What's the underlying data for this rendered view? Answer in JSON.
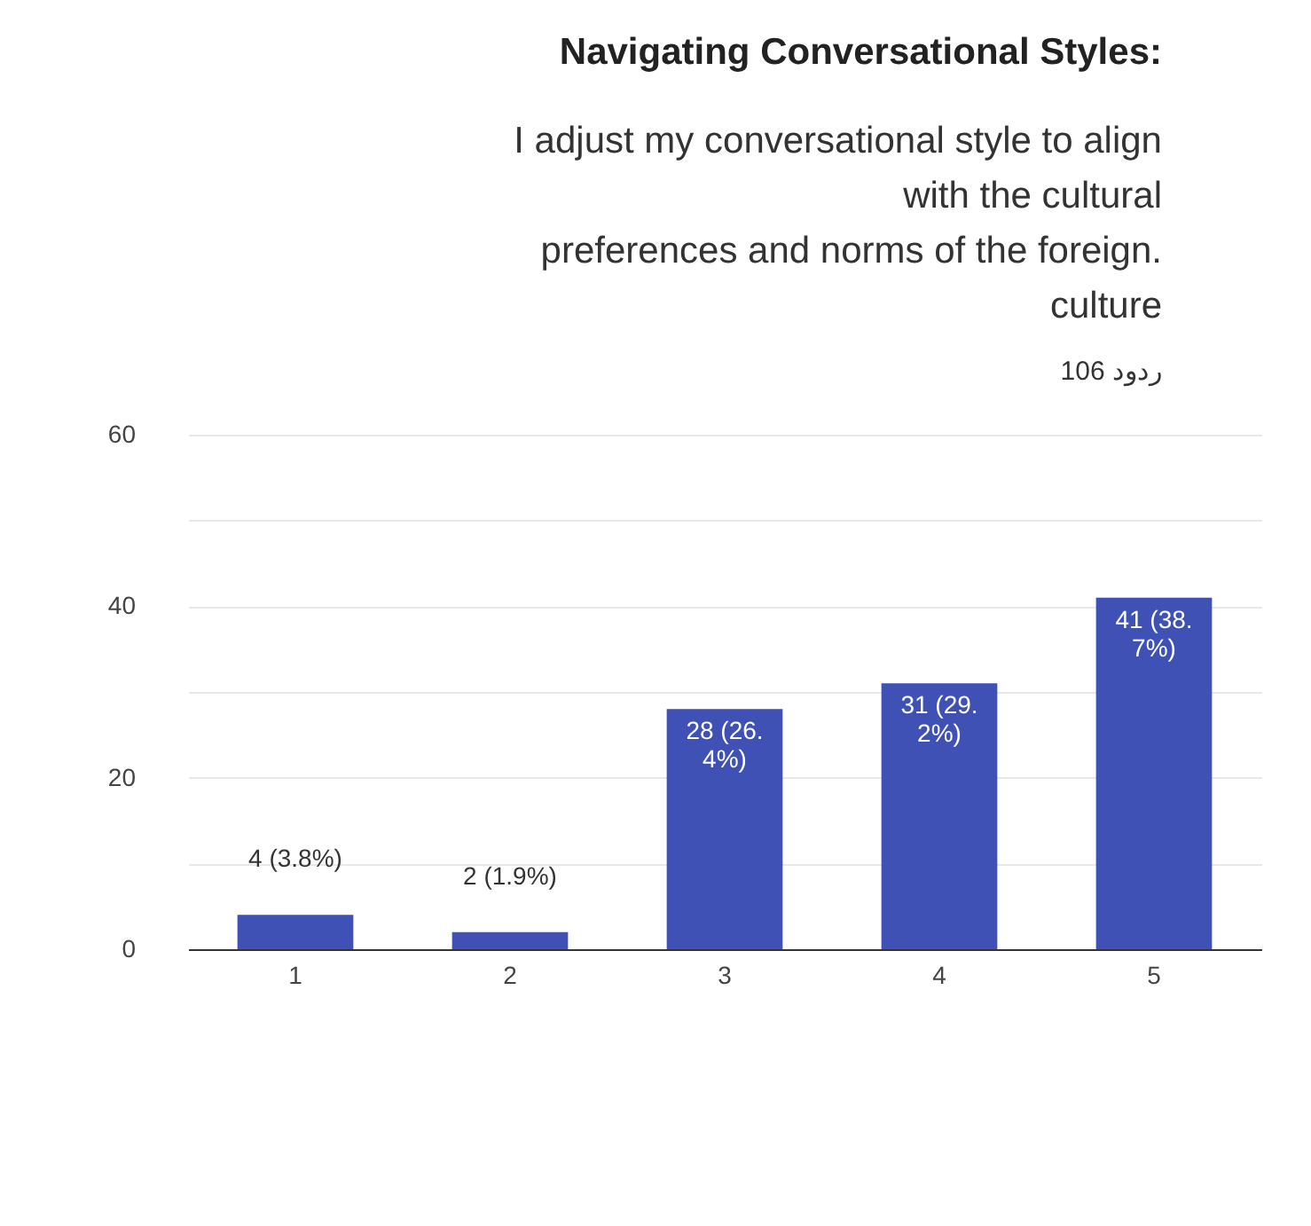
{
  "chart_data": {
    "type": "bar",
    "title": "Navigating Conversational Styles:",
    "subtitle": "I adjust my conversational style to align\nwith the cultural\npreferences and norms of the foreign.\nculture",
    "annotations": [
      "106 ردود"
    ],
    "categories": [
      "1",
      "2",
      "3",
      "4",
      "5"
    ],
    "values": [
      4,
      2,
      28,
      31,
      41
    ],
    "color": "#3f51b5",
    "value_labels": [
      "4 (3.8%)",
      "2 (1.9%)",
      "28 (26.\n4%)",
      "31 (29.\n2%)",
      "41 (38.\n7%)"
    ],
    "ylim": [
      0,
      60
    ],
    "yticks": [
      0,
      {
        "value": 10,
        "label": null
      },
      20,
      {
        "value": 30,
        "label": null
      },
      40,
      {
        "value": 50,
        "label": null
      },
      60
    ],
    "grid": "y"
  }
}
